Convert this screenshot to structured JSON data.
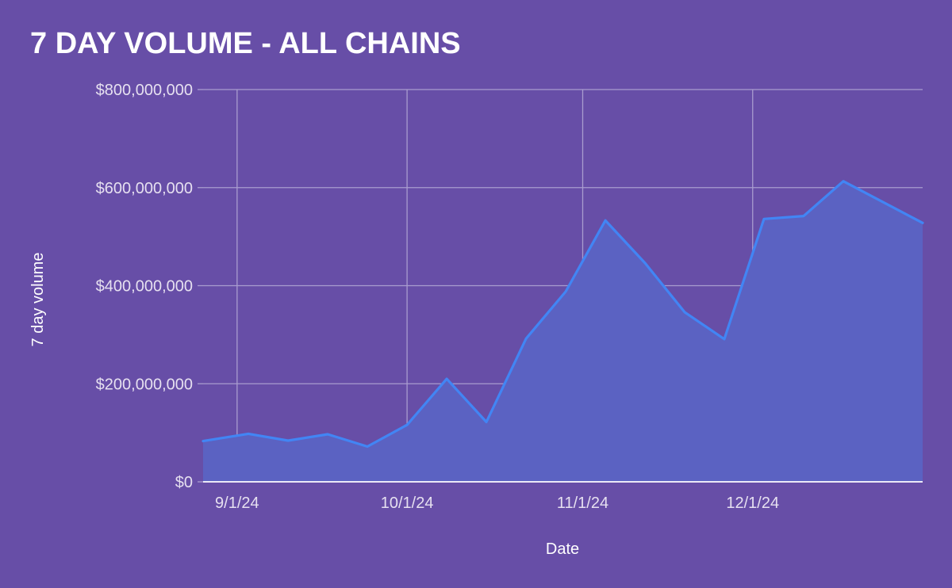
{
  "title": "7 DAY VOLUME - ALL CHAINS",
  "colors": {
    "background": "#674EA7",
    "line": "#4285F4",
    "area": "#5B62C2",
    "grid": "#A99CCF",
    "baseline": "#FFFFFF",
    "text": "#FFFFFF",
    "tick_text": "#E6E0F0"
  },
  "chart_data": {
    "type": "area",
    "title": "7 DAY VOLUME - ALL CHAINS",
    "xlabel": "Date",
    "ylabel": "7 day volume",
    "x_range": [
      "2024-08-26",
      "2024-12-31"
    ],
    "ylim": [
      0,
      800000000
    ],
    "y_ticks": [
      0,
      200000000,
      400000000,
      600000000,
      800000000
    ],
    "y_tick_labels": [
      "$0",
      "$200,000,000",
      "$400,000,000",
      "$600,000,000",
      "$800,000,000"
    ],
    "x_ticks": [
      "2024-09-01",
      "2024-10-01",
      "2024-11-01",
      "2024-12-01"
    ],
    "x_tick_labels": [
      "9/1/24",
      "10/1/24",
      "11/1/24",
      "12/1/24"
    ],
    "grid": true,
    "legend": "none",
    "series": [
      {
        "x": [
          "2024-08-26",
          "2024-09-03",
          "2024-09-10",
          "2024-09-17",
          "2024-09-24",
          "2024-10-01",
          "2024-10-08",
          "2024-10-15",
          "2024-10-22",
          "2024-10-29",
          "2024-11-05",
          "2024-11-12",
          "2024-11-19",
          "2024-11-26",
          "2024-12-03",
          "2024-12-10",
          "2024-12-17",
          "2024-12-31"
        ],
        "values": [
          83000000,
          98000000,
          84000000,
          97000000,
          72000000,
          116000000,
          210000000,
          122000000,
          292000000,
          388000000,
          533000000,
          446000000,
          346000000,
          291000000,
          536000000,
          542000000,
          613000000,
          528000000
        ]
      }
    ]
  }
}
